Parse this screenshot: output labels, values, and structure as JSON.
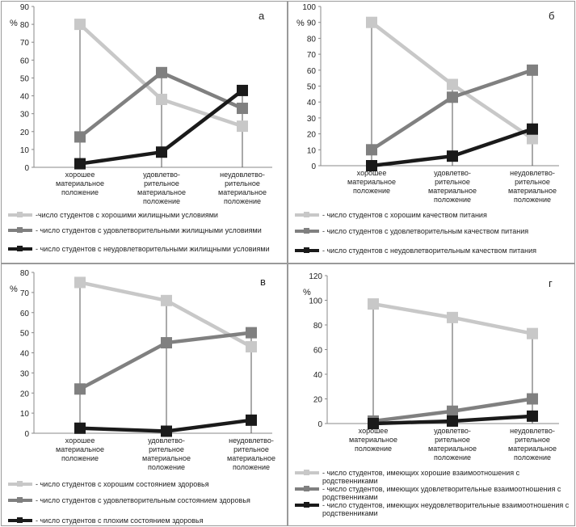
{
  "chart_data": [
    {
      "id": "a",
      "type": "line",
      "panel_label": "а",
      "ylabel": "%",
      "ylim": [
        0,
        90
      ],
      "ystep": 10,
      "categories": [
        [
          "хорошее",
          "материальное",
          "положение"
        ],
        [
          "удовлетво-",
          "рительное",
          "материальное",
          "положение"
        ],
        [
          "неудовлетво-",
          "рительное",
          "материальное",
          "положение"
        ]
      ],
      "series": [
        {
          "name": "-число студентов с хорошими жилищными условиями",
          "color": "#c8c8c8",
          "values": [
            80,
            38,
            23
          ]
        },
        {
          "name": "- число студентов с удовлетворительными жилищными условиями",
          "color": "#808080",
          "values": [
            17,
            53,
            33
          ]
        },
        {
          "name": "- число студентов с неудовлетворительными жилищными условиями",
          "color": "#1a1a1a",
          "values": [
            2,
            8.5,
            43
          ]
        }
      ]
    },
    {
      "id": "b",
      "type": "line",
      "panel_label": "б",
      "ylabel": "%",
      "ylim": [
        0,
        100
      ],
      "ystep": 10,
      "categories": [
        [
          "хорошее",
          "материальное",
          "положение"
        ],
        [
          "удовлетво-",
          "рительное",
          "материальное",
          "положение"
        ],
        [
          "неудовлетво-",
          "рительное",
          "материальное",
          "положение"
        ]
      ],
      "series": [
        {
          "name": "- число студентов с хорошим качеством питания",
          "color": "#c8c8c8",
          "values": [
            90,
            51,
            17
          ]
        },
        {
          "name": "- число студентов с удовлетворительным качеством питания",
          "color": "#808080",
          "values": [
            10,
            43,
            60
          ]
        },
        {
          "name": "- число студентов с неудовлетворительным качеством питания",
          "color": "#1a1a1a",
          "values": [
            0,
            6,
            23
          ]
        }
      ]
    },
    {
      "id": "v",
      "type": "line",
      "panel_label": "в",
      "ylabel": "%",
      "ylim": [
        0,
        80
      ],
      "ystep": 10,
      "categories": [
        [
          "хорошее",
          "материальное",
          "положение"
        ],
        [
          "удовлетво-",
          "рительное",
          "материальное",
          "положение"
        ],
        [
          "неудовлетво-",
          "рительное",
          "материальное",
          "положение"
        ]
      ],
      "series": [
        {
          "name": "- число студентов с хорошим состоянием здоровья",
          "color": "#c8c8c8",
          "values": [
            75,
            66,
            43
          ]
        },
        {
          "name": "- число студентов с удовлетворительным состоянием здоровья",
          "color": "#808080",
          "values": [
            22,
            45,
            50
          ]
        },
        {
          "name": "- число студентов с плохим состоянием здоровья",
          "color": "#1a1a1a",
          "values": [
            2.5,
            1,
            6.5
          ]
        }
      ]
    },
    {
      "id": "g",
      "type": "line",
      "panel_label": "г",
      "ylabel": "%",
      "ylim": [
        0,
        120
      ],
      "ystep": 20,
      "categories": [
        [
          "хорошее",
          "материальное",
          "положение"
        ],
        [
          "удовлетво-",
          "рительное",
          "материальное",
          "положение"
        ],
        [
          "неудовлетво-",
          "рительное",
          "материальное",
          "положение"
        ]
      ],
      "series": [
        {
          "name": "- число студентов, имеющих хорошие взаимоотношения с родственниками",
          "color": "#c8c8c8",
          "values": [
            97,
            86,
            73
          ]
        },
        {
          "name": "- число студентов, имеющих удовлетворительные взаимоотношения с родственниками",
          "color": "#808080",
          "values": [
            2,
            10,
            20
          ]
        },
        {
          "name": "- число студентов, имеющих неудовлетворительные взаимоотношения с родственниками",
          "color": "#1a1a1a",
          "values": [
            0,
            2,
            6
          ]
        }
      ]
    }
  ]
}
